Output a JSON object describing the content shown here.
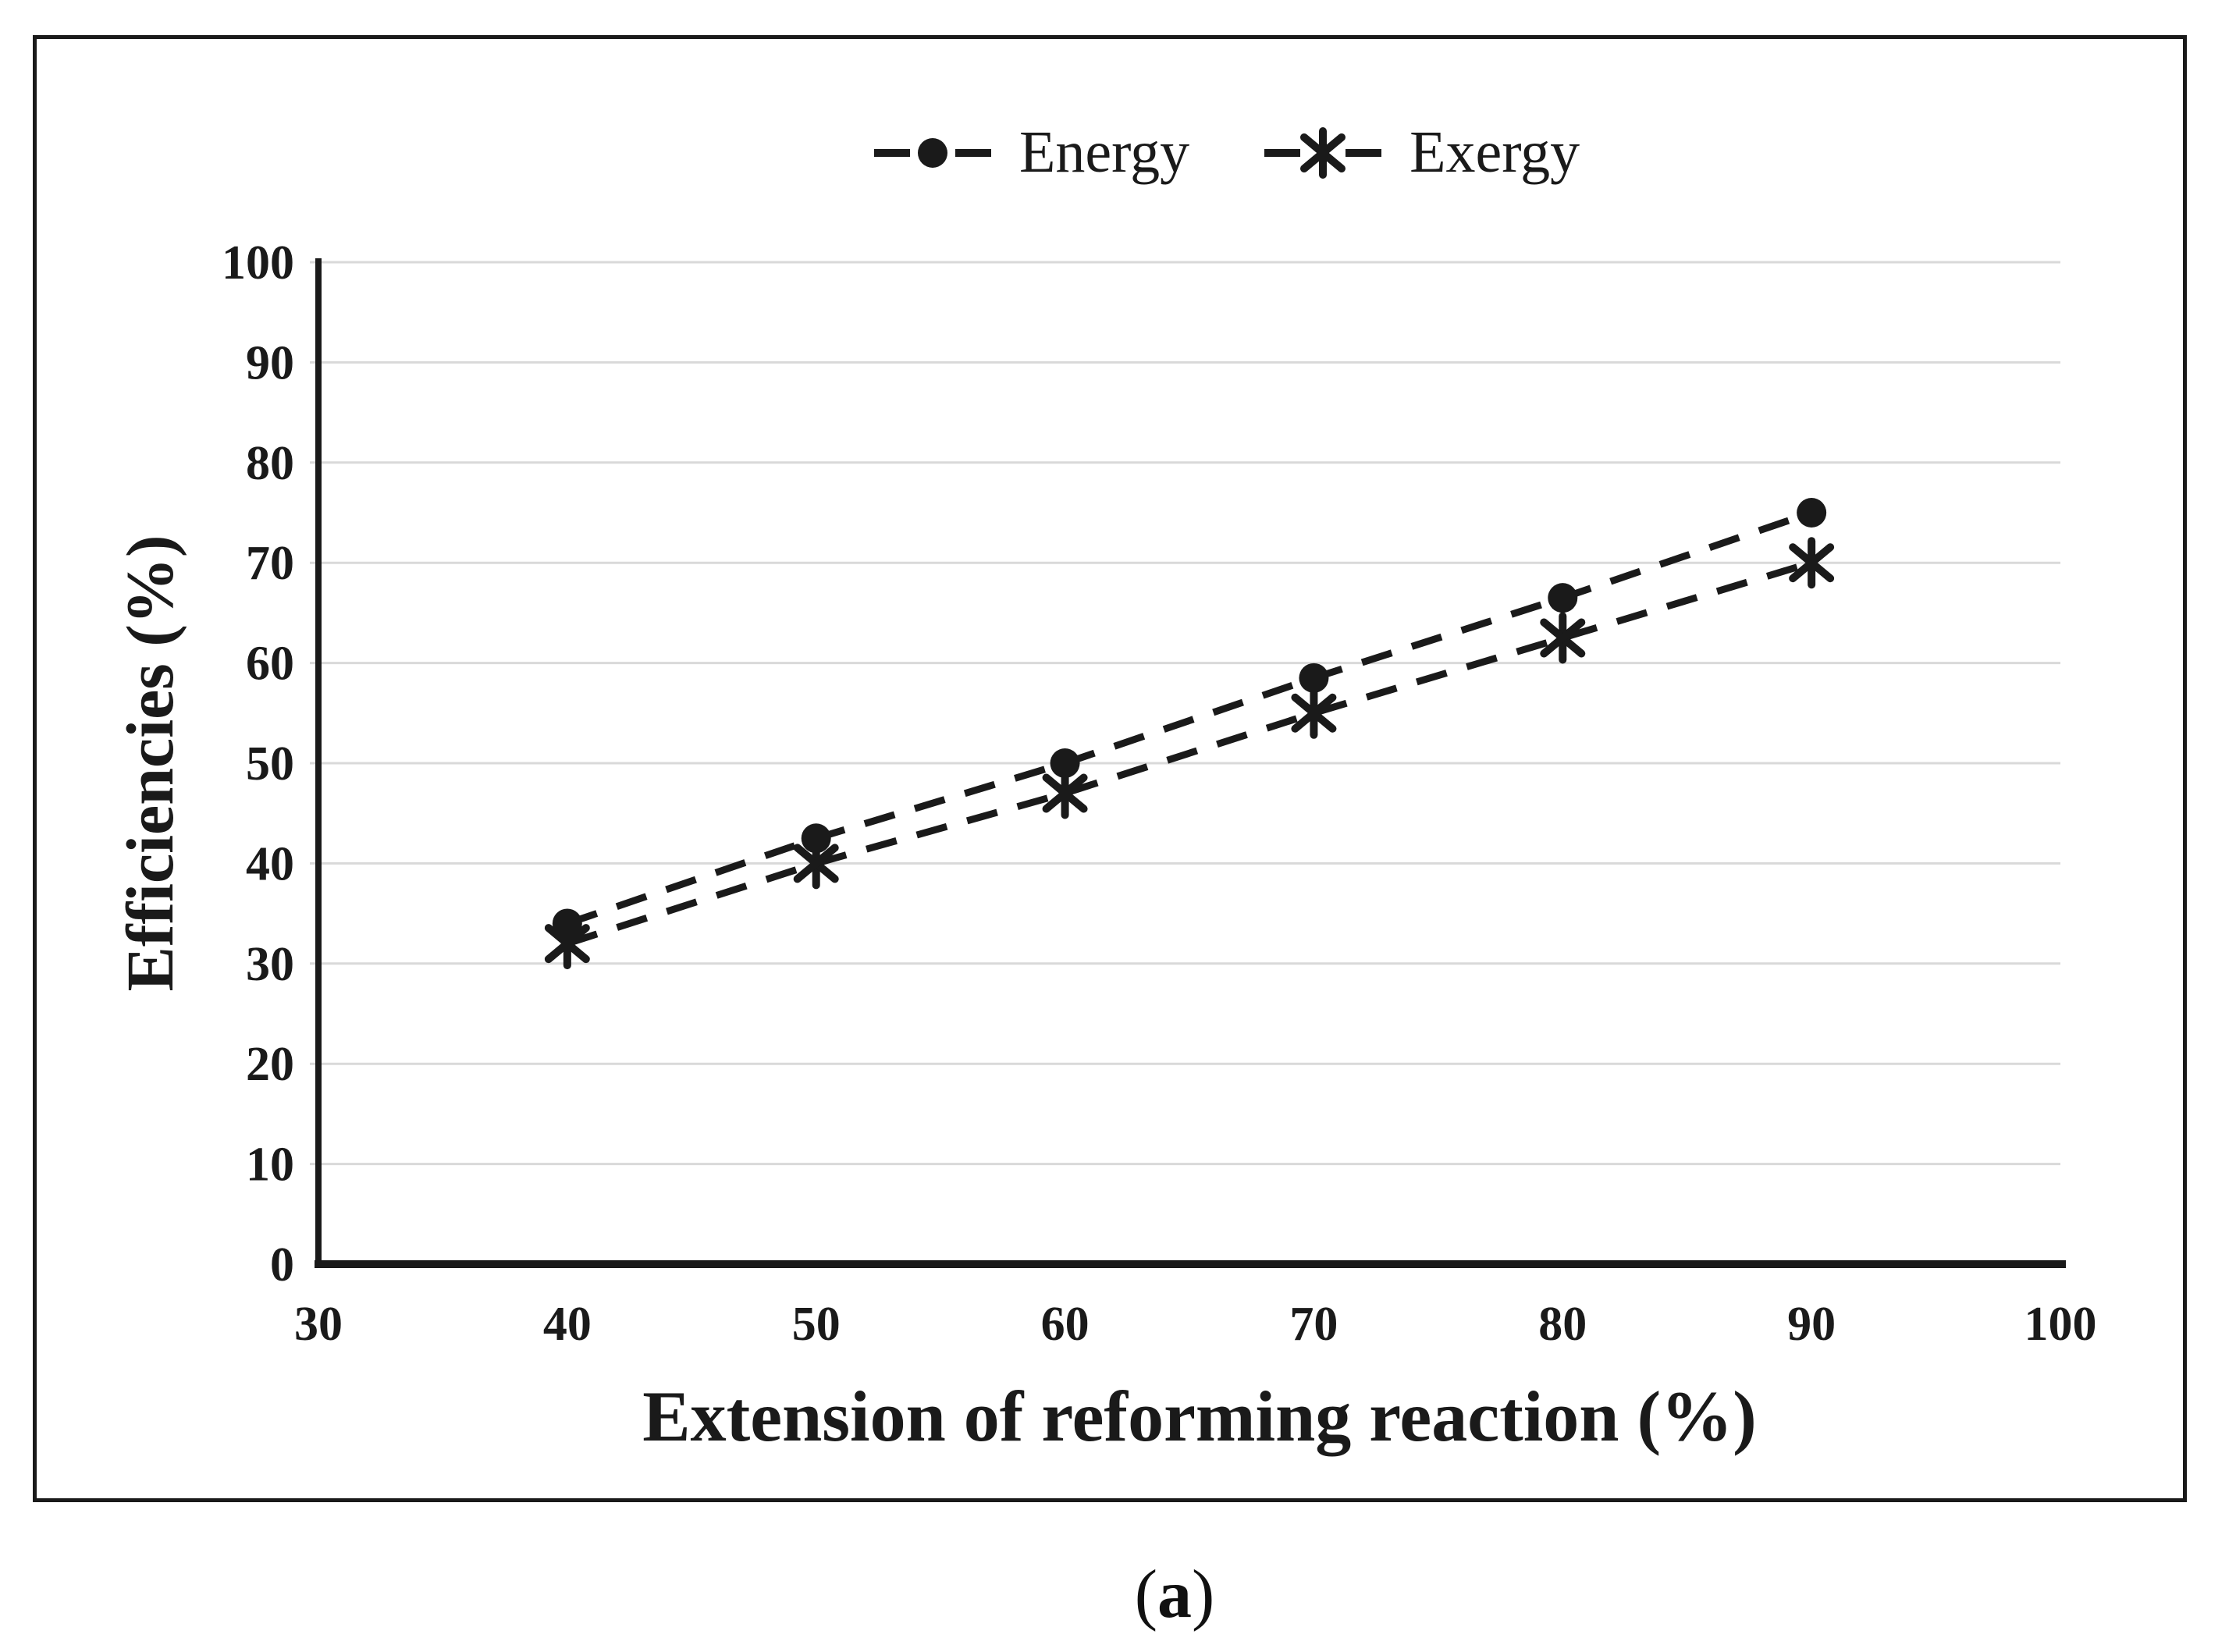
{
  "figure": {
    "panel_label": "(a)"
  },
  "chart_data": {
    "type": "line",
    "title": "",
    "xlabel": "Extension of reforming reaction (%)",
    "ylabel": "Efficiencies (%)",
    "x": [
      40,
      50,
      60,
      70,
      80,
      90
    ],
    "series": [
      {
        "name": "Energy",
        "marker": "circle",
        "line_style": "dashed",
        "color": "#1a1a1a",
        "values": [
          34,
          42.5,
          50,
          58.5,
          66.5,
          75
        ]
      },
      {
        "name": "Exergy",
        "marker": "asterisk",
        "line_style": "dashed",
        "color": "#1a1a1a",
        "values": [
          32,
          40,
          47,
          55,
          62.5,
          70
        ]
      }
    ],
    "xlim": [
      30,
      100
    ],
    "ylim": [
      0,
      100
    ],
    "x_ticks": [
      30,
      40,
      50,
      60,
      70,
      80,
      90,
      100
    ],
    "y_ticks": [
      0,
      10,
      20,
      30,
      40,
      50,
      60,
      70,
      80,
      90,
      100
    ],
    "grid": "horizontal-only",
    "grid_color": "#d9d9d9",
    "axis_color": "#1a1a1a",
    "legend_position": "top-center"
  }
}
